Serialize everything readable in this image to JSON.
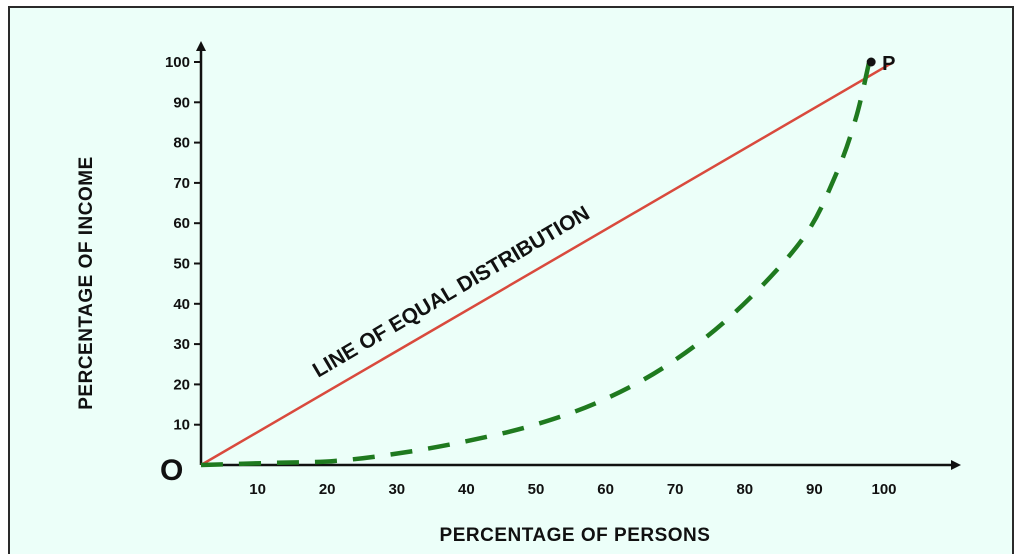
{
  "chart_data": {
    "type": "line",
    "title": "",
    "xlabel": "PERCENTAGE OF PERSONS",
    "ylabel": "PERCENTAGE OF INCOME",
    "xlim": [
      0,
      100
    ],
    "ylim": [
      0,
      100
    ],
    "x_ticks": [
      10,
      20,
      30,
      40,
      50,
      60,
      70,
      80,
      90,
      100
    ],
    "y_ticks": [
      10,
      20,
      30,
      40,
      50,
      60,
      70,
      80,
      90,
      100
    ],
    "origin_label": "O",
    "grid": false,
    "series": [
      {
        "style": "solid",
        "color": "#d94a3d",
        "x": [
          0,
          100
        ],
        "y": [
          0,
          100
        ]
      },
      {
        "style": "dashed",
        "color": "#1f7a1f",
        "x": [
          0,
          10,
          20,
          30,
          40,
          50,
          60,
          70,
          80,
          90,
          95,
          98,
          100
        ],
        "y": [
          0,
          0.5,
          1,
          3,
          6,
          10,
          16,
          25,
          38,
          56,
          72,
          86,
          100
        ]
      }
    ],
    "annotations": [
      {
        "text": "LINE OF EQUAL DISTRIBUTION",
        "target": "series.0"
      },
      {
        "text": "P",
        "x": 100,
        "y": 100
      }
    ]
  }
}
